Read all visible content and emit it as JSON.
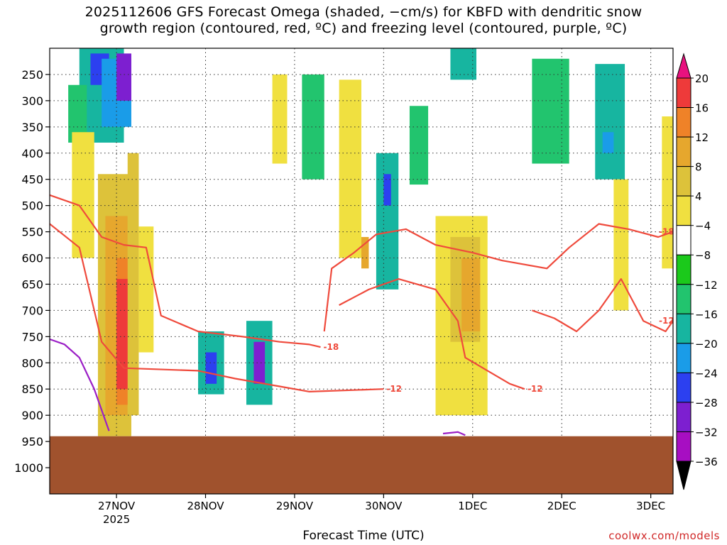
{
  "title": {
    "line1": "2025112606 GFS Forecast Omega (shaded, −cm/s) for KBFD with dendritic snow",
    "line2": "growth region (contoured, red, ºC) and freezing level (contoured, purple, ºC)"
  },
  "credit": "coolwx.com/models",
  "chart_data": {
    "type": "heatmap",
    "xlabel": "Forecast Time (UTC)",
    "ylabel": "",
    "x_range_hours": [
      0,
      168
    ],
    "x_ticks": [
      {
        "hour": 18,
        "label": "27NOV",
        "sublabel": "2025"
      },
      {
        "hour": 42,
        "label": "28NOV",
        "sublabel": ""
      },
      {
        "hour": 66,
        "label": "29NOV",
        "sublabel": ""
      },
      {
        "hour": 90,
        "label": "30NOV",
        "sublabel": ""
      },
      {
        "hour": 114,
        "label": "1DEC",
        "sublabel": ""
      },
      {
        "hour": 138,
        "label": "2DEC",
        "sublabel": ""
      },
      {
        "hour": 162,
        "label": "3DEC",
        "sublabel": ""
      }
    ],
    "y_range_hpa": [
      1050,
      200
    ],
    "y_ticks": [
      250,
      300,
      350,
      400,
      450,
      500,
      550,
      600,
      650,
      700,
      750,
      800,
      850,
      900,
      950,
      1000
    ],
    "y_labels": [
      "250",
      "300",
      "350",
      "400",
      "450",
      "500",
      "550",
      "600",
      "650",
      "700",
      "750",
      "800",
      "850",
      "900",
      "950",
      "1000"
    ],
    "grid": true,
    "colorbar": {
      "labels": [
        "20",
        "16",
        "12",
        "8",
        "4",
        "−4",
        "−8",
        "−12",
        "−16",
        "−20",
        "−24",
        "−28",
        "−32",
        "−36"
      ],
      "colors": [
        "#e8117f",
        "#ee3a3a",
        "#ef8228",
        "#e6a72d",
        "#ddc23a",
        "#f0e040",
        "#ffffff",
        "#1bc91b",
        "#22c46e",
        "#17b5a0",
        "#1a9ce8",
        "#2c40f0",
        "#7d1fd0",
        "#a70ec2",
        "#a9a9a9"
      ]
    },
    "terrain_pressure_hpa": 940,
    "terrain_color": "#a0522d",
    "omega_cells": [
      {
        "t0": 8,
        "t1": 20,
        "p0": 200,
        "p1": 380,
        "level": -12
      },
      {
        "t0": 11,
        "t1": 16,
        "p0": 210,
        "p1": 270,
        "level": -20
      },
      {
        "t0": 14,
        "t1": 22,
        "p0": 220,
        "p1": 350,
        "level": -16
      },
      {
        "t0": 18,
        "t1": 22,
        "p0": 210,
        "p1": 300,
        "level": -24
      },
      {
        "t0": 5,
        "t1": 10,
        "p0": 270,
        "p1": 380,
        "level": -8
      },
      {
        "t0": 13,
        "t1": 22,
        "p0": 440,
        "p1": 940,
        "level": 8
      },
      {
        "t0": 15,
        "t1": 21,
        "p0": 520,
        "p1": 900,
        "level": 12
      },
      {
        "t0": 18,
        "t1": 22,
        "p0": 600,
        "p1": 880,
        "level": 16
      },
      {
        "t0": 18,
        "t1": 22,
        "p0": 640,
        "p1": 850,
        "level": 20
      },
      {
        "t0": 21,
        "t1": 24,
        "p0": 400,
        "p1": 900,
        "level": 8
      },
      {
        "t0": 24,
        "t1": 28,
        "p0": 540,
        "p1": 780,
        "level": 4
      },
      {
        "t0": 6,
        "t1": 12,
        "p0": 360,
        "p1": 600,
        "level": 4
      },
      {
        "t0": 40,
        "t1": 47,
        "p0": 740,
        "p1": 860,
        "level": -12
      },
      {
        "t0": 42,
        "t1": 45,
        "p0": 780,
        "p1": 840,
        "level": -20
      },
      {
        "t0": 53,
        "t1": 60,
        "p0": 720,
        "p1": 880,
        "level": -12
      },
      {
        "t0": 55,
        "t1": 58,
        "p0": 760,
        "p1": 840,
        "level": -24
      },
      {
        "t0": 60,
        "t1": 64,
        "p0": 250,
        "p1": 420,
        "level": 4
      },
      {
        "t0": 68,
        "t1": 74,
        "p0": 250,
        "p1": 450,
        "level": -8
      },
      {
        "t0": 78,
        "t1": 84,
        "p0": 260,
        "p1": 600,
        "level": 4
      },
      {
        "t0": 84,
        "t1": 86,
        "p0": 560,
        "p1": 620,
        "level": 12
      },
      {
        "t0": 88,
        "t1": 94,
        "p0": 400,
        "p1": 660,
        "level": -12
      },
      {
        "t0": 90,
        "t1": 92,
        "p0": 440,
        "p1": 500,
        "level": -20
      },
      {
        "t0": 97,
        "t1": 102,
        "p0": 310,
        "p1": 460,
        "level": -8
      },
      {
        "t0": 104,
        "t1": 118,
        "p0": 520,
        "p1": 900,
        "level": 4
      },
      {
        "t0": 108,
        "t1": 116,
        "p0": 560,
        "p1": 760,
        "level": 8
      },
      {
        "t0": 111,
        "t1": 116,
        "p0": 600,
        "p1": 740,
        "level": 12
      },
      {
        "t0": 108,
        "t1": 115,
        "p0": 200,
        "p1": 260,
        "level": -12
      },
      {
        "t0": 130,
        "t1": 140,
        "p0": 220,
        "p1": 420,
        "level": -8
      },
      {
        "t0": 147,
        "t1": 155,
        "p0": 230,
        "p1": 450,
        "level": -12
      },
      {
        "t0": 149,
        "t1": 152,
        "p0": 360,
        "p1": 400,
        "level": -16
      },
      {
        "t0": 152,
        "t1": 156,
        "p0": 450,
        "p1": 700,
        "level": 4
      },
      {
        "t0": 165,
        "t1": 168,
        "p0": 330,
        "p1": 620,
        "level": 4
      }
    ],
    "dgz_contours": [
      {
        "label": "-12",
        "points": [
          [
            0,
            535
          ],
          [
            8,
            580
          ],
          [
            14,
            760
          ],
          [
            20,
            810
          ],
          [
            40,
            815
          ],
          [
            50,
            830
          ],
          [
            62,
            845
          ],
          [
            70,
            855
          ],
          [
            90,
            850
          ]
        ]
      },
      {
        "label": "-18",
        "points": [
          [
            0,
            480
          ],
          [
            8,
            500
          ],
          [
            14,
            560
          ],
          [
            20,
            575
          ],
          [
            26,
            580
          ],
          [
            30,
            710
          ],
          [
            40,
            740
          ],
          [
            52,
            750
          ],
          [
            62,
            760
          ],
          [
            70,
            765
          ],
          [
            73,
            770
          ]
        ]
      },
      {
        "label": "-18",
        "points": [
          [
            74,
            740
          ],
          [
            76,
            620
          ],
          [
            82,
            590
          ],
          [
            88,
            555
          ],
          [
            96,
            545
          ],
          [
            104,
            575
          ],
          [
            114,
            590
          ],
          [
            122,
            605
          ],
          [
            134,
            620
          ],
          [
            140,
            580
          ],
          [
            148,
            535
          ],
          [
            156,
            545
          ],
          [
            164,
            560
          ],
          [
            168,
            550
          ]
        ]
      },
      {
        "label": "-12",
        "points": [
          [
            78,
            690
          ],
          [
            86,
            660
          ],
          [
            94,
            640
          ],
          [
            104,
            660
          ],
          [
            110,
            720
          ],
          [
            112,
            790
          ],
          [
            118,
            815
          ],
          [
            124,
            840
          ],
          [
            128,
            850
          ]
        ]
      },
      {
        "label": "-12",
        "points": [
          [
            130,
            700
          ],
          [
            136,
            715
          ],
          [
            142,
            740
          ],
          [
            148,
            700
          ],
          [
            154,
            640
          ],
          [
            160,
            720
          ],
          [
            166,
            740
          ],
          [
            168,
            720
          ]
        ]
      }
    ],
    "freezing_contours": [
      {
        "label": "",
        "points": [
          [
            0,
            755
          ],
          [
            4,
            765
          ],
          [
            8,
            790
          ],
          [
            12,
            850
          ],
          [
            16,
            930
          ]
        ]
      },
      {
        "label": "",
        "points": [
          [
            106,
            935
          ],
          [
            110,
            932
          ],
          [
            112,
            938
          ]
        ]
      }
    ]
  }
}
